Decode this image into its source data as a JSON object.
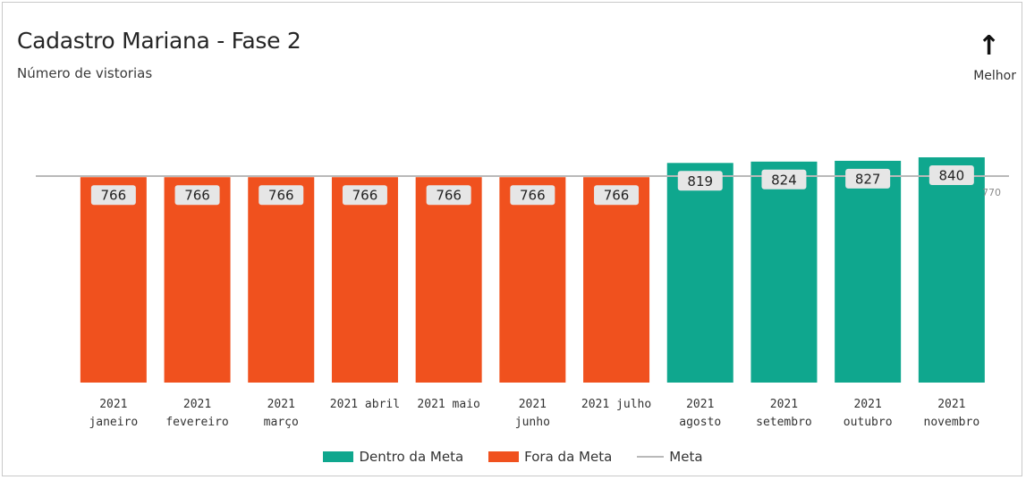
{
  "header": {
    "title": "Cadastro Mariana - Fase 2",
    "subtitle": "Número de vistorias",
    "better_arrow": "↑",
    "better_label": "Melhor"
  },
  "colors": {
    "within_target": "#0fa78e",
    "outside_target": "#f0511e",
    "target_line": "#b9b9b9",
    "value_label_bg": "#e6e6e6"
  },
  "legend": {
    "within": "Dentro da Meta",
    "outside": "Fora da Meta",
    "target": "Meta"
  },
  "chart_data": {
    "type": "bar",
    "title": "Cadastro Mariana - Fase 2",
    "subtitle": "Número de vistorias",
    "categories": [
      [
        "2021",
        "janeiro"
      ],
      [
        "2021",
        "fevereiro"
      ],
      [
        "2021",
        "março"
      ],
      [
        "2021 abril"
      ],
      [
        "2021 maio"
      ],
      [
        "2021",
        "junho"
      ],
      [
        "2021 julho"
      ],
      [
        "2021",
        "agosto"
      ],
      [
        "2021",
        "setembro"
      ],
      [
        "2021",
        "outubro"
      ],
      [
        "2021",
        "novembro"
      ]
    ],
    "values": [
      766,
      766,
      766,
      766,
      766,
      766,
      766,
      819,
      824,
      827,
      840
    ],
    "status": [
      "outside",
      "outside",
      "outside",
      "outside",
      "outside",
      "outside",
      "outside",
      "within",
      "within",
      "within",
      "within"
    ],
    "target": 770,
    "target_label": "770",
    "legend_position": "bottom",
    "grid": false
  }
}
